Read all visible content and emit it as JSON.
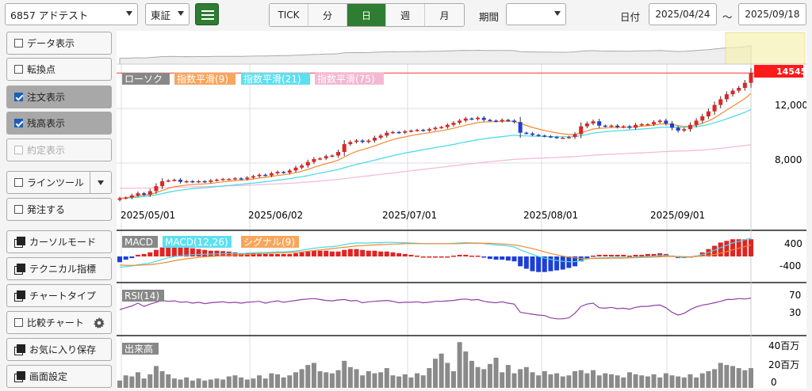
{
  "toolbar": {
    "stock": "6857 アドテスト",
    "market": "東証",
    "tabs": [
      "TICK",
      "分",
      "日",
      "週",
      "月"
    ],
    "active_tab": "日",
    "period_label": "期間",
    "period_value": "",
    "date_label": "日付",
    "date_from": "2025/04/24",
    "tilde": "〜",
    "date_to": "2025/09/18"
  },
  "side": {
    "data_display": "データ表示",
    "turning_point": "転換点",
    "order_display": "注文表示",
    "balance_display": "残高表示",
    "contract_display": "約定表示",
    "line_tool": "ラインツール",
    "place_order": "発注する",
    "cursor_mode": "カーソルモード",
    "technical": "テクニカル指標",
    "chart_type": "チャートタイプ",
    "compare_chart": "比較チャート",
    "save_favorite": "お気に入り保存",
    "screen_settings": "画面設定"
  },
  "chart": {
    "price_legend": [
      "ローソク",
      "指数平滑(9)",
      "指数平滑(21)",
      "指数平滑(75)"
    ],
    "last_price": "14545",
    "price_ticks": [
      "12,000",
      "8,000"
    ],
    "date_ticks": [
      "2025/05/01",
      "2025/06/02",
      "2025/07/01",
      "2025/08/01",
      "2025/09/01"
    ],
    "macd_legend": [
      "MACD",
      "MACD(12,26)",
      "シグナル(9)"
    ],
    "macd_ticks": [
      "400",
      "-400"
    ],
    "rsi_legend": "RSI(14)",
    "rsi_ticks": [
      "70",
      "30"
    ],
    "volume_legend": "出来高",
    "volume_ticks": [
      "40百万",
      "20百万",
      "0"
    ]
  },
  "chart_data": {
    "type": "candlestick",
    "x_range": [
      "2025/04/24",
      "2025/09/18"
    ],
    "close": [
      5750,
      5800,
      5950,
      6100,
      6000,
      6250,
      6600,
      6950,
      7000,
      7050,
      6900,
      6950,
      6900,
      6950,
      6900,
      7000,
      7050,
      7100,
      7100,
      7150,
      7100,
      7200,
      7300,
      7400,
      7350,
      7500,
      7600,
      7550,
      7700,
      7900,
      8050,
      8300,
      8500,
      8550,
      8700,
      8750,
      9000,
      9550,
      9700,
      9800,
      9700,
      9800,
      10000,
      10150,
      10350,
      10400,
      10350,
      10450,
      10500,
      10550,
      10500,
      10600,
      10700,
      10750,
      10900,
      11050,
      11200,
      11350,
      11300,
      11400,
      11250,
      11200,
      11150,
      11250,
      11200,
      11100,
      10350,
      10300,
      10200,
      10150,
      10100,
      10050,
      10000,
      10000,
      10050,
      10250,
      10800,
      11000,
      11150,
      10850,
      10800,
      10850,
      10750,
      10800,
      10700,
      10900,
      10950,
      10950,
      11100,
      11200,
      11000,
      10700,
      10500,
      10600,
      10900,
      11200,
      11500,
      11850,
      12300,
      12700,
      13050,
      13300,
      13500,
      13850,
      14545
    ],
    "volume_millions": [
      7,
      12,
      11,
      15,
      9,
      13,
      21,
      16,
      13,
      9,
      8,
      10,
      7,
      9,
      7,
      8,
      9,
      8,
      11,
      12,
      10,
      8,
      9,
      12,
      9,
      14,
      13,
      10,
      12,
      15,
      18,
      22,
      24,
      16,
      15,
      14,
      17,
      26,
      20,
      18,
      12,
      16,
      14,
      15,
      19,
      12,
      11,
      13,
      10,
      14,
      12,
      19,
      28,
      33,
      24,
      16,
      44,
      35,
      26,
      20,
      18,
      23,
      29,
      15,
      22,
      14,
      18,
      20,
      15,
      12,
      16,
      13,
      14,
      11,
      12,
      16,
      17,
      14,
      17,
      12,
      14,
      13,
      12,
      10,
      15,
      13,
      12,
      11,
      13,
      10,
      14,
      12,
      11,
      10,
      13,
      10,
      14,
      16,
      18,
      24,
      22,
      21,
      19,
      17,
      19
    ],
    "ema9": [
      5750,
      5790,
      5850,
      5920,
      5960,
      6020,
      6140,
      6300,
      6440,
      6560,
      6620,
      6680,
      6710,
      6740,
      6760,
      6800,
      6850,
      6900,
      6940,
      6980,
      7010,
      7050,
      7100,
      7170,
      7220,
      7280,
      7350,
      7400,
      7460,
      7550,
      7650,
      7780,
      7920,
      8050,
      8180,
      8290,
      8430,
      8650,
      8860,
      9040,
      9160,
      9290,
      9430,
      9580,
      9730,
      9870,
      9970,
      10060,
      10150,
      10230,
      10290,
      10350,
      10420,
      10490,
      10570,
      10660,
      10770,
      10880,
      10970,
      11060,
      11100,
      11120,
      11130,
      11150,
      11160,
      11150,
      11000,
      10860,
      10720,
      10610,
      10510,
      10420,
      10340,
      10270,
      10230,
      10230,
      10350,
      10480,
      10610,
      10660,
      10680,
      10710,
      10720,
      10730,
      10730,
      10770,
      10810,
      10840,
      10890,
      10960,
      10970,
      10920,
      10840,
      10790,
      10820,
      10890,
      11010,
      11180,
      11400,
      11660,
      11940,
      12210,
      12470,
      12750,
      13100
    ],
    "ema21": [
      5750,
      5760,
      5790,
      5830,
      5870,
      5920,
      5990,
      6080,
      6170,
      6250,
      6320,
      6370,
      6420,
      6460,
      6490,
      6530,
      6570,
      6610,
      6650,
      6690,
      6730,
      6770,
      6810,
      6860,
      6910,
      6960,
      7020,
      7070,
      7130,
      7200,
      7260,
      7340,
      7430,
      7520,
      7600,
      7680,
      7770,
      7890,
      8010,
      8120,
      8220,
      8320,
      8430,
      8530,
      8640,
      8740,
      8830,
      8920,
      9000,
      9080,
      9160,
      9230,
      9310,
      9380,
      9450,
      9530,
      9620,
      9700,
      9780,
      9860,
      9920,
      9980,
      10030,
      10080,
      10130,
      10170,
      10140,
      10130,
      10110,
      10100,
      10090,
      10080,
      10070,
      10070,
      10070,
      10080,
      10150,
      10230,
      10320,
      10380,
      10420,
      10460,
      10490,
      10520,
      10550,
      10580,
      10610,
      10640,
      10680,
      10720,
      10740,
      10740,
      10730,
      10720,
      10740,
      10780,
      10840,
      10930,
      11050,
      11180,
      11320,
      11470,
      11620,
      11780,
      11980
    ],
    "ema75": [
      6450,
      6450,
      6450,
      6460,
      6460,
      6470,
      6480,
      6490,
      6510,
      6520,
      6530,
      6540,
      6550,
      6560,
      6570,
      6580,
      6590,
      6600,
      6620,
      6630,
      6640,
      6660,
      6680,
      6700,
      6720,
      6740,
      6760,
      6780,
      6800,
      6830,
      6860,
      6890,
      6920,
      6960,
      7000,
      7040,
      7080,
      7130,
      7180,
      7230,
      7280,
      7330,
      7380,
      7430,
      7480,
      7530,
      7580,
      7630,
      7680,
      7730,
      7780,
      7830,
      7880,
      7930,
      7980,
      8030,
      8080,
      8130,
      8180,
      8230,
      8280,
      8320,
      8360,
      8400,
      8440,
      8480,
      8500,
      8520,
      8540,
      8560,
      8580,
      8600,
      8620,
      8640,
      8660,
      8680,
      8710,
      8740,
      8770,
      8800,
      8820,
      8840,
      8860,
      8880,
      8900,
      8920,
      8940,
      8960,
      8980,
      9010,
      9030,
      9050,
      9060,
      9070,
      9090,
      9110,
      9140,
      9170,
      9210,
      9250,
      9300,
      9350,
      9400,
      9450,
      9500
    ],
    "macd": [
      -330,
      -310,
      -290,
      -250,
      -230,
      -200,
      -150,
      -90,
      -40,
      0,
      20,
      40,
      50,
      60,
      70,
      70,
      80,
      85,
      90,
      90,
      90,
      100,
      110,
      120,
      120,
      130,
      140,
      140,
      150,
      170,
      190,
      220,
      250,
      270,
      290,
      300,
      320,
      360,
      390,
      410,
      410,
      410,
      420,
      420,
      430,
      430,
      420,
      420,
      410,
      400,
      390,
      390,
      390,
      390,
      390,
      400,
      410,
      420,
      410,
      410,
      390,
      370,
      350,
      340,
      320,
      290,
      200,
      130,
      60,
      0,
      -50,
      -90,
      -120,
      -150,
      -160,
      -160,
      -120,
      -80,
      -50,
      -40,
      -40,
      -30,
      -30,
      -30,
      -30,
      -20,
      -10,
      0,
      10,
      30,
      30,
      10,
      -20,
      -30,
      -20,
      10,
      60,
      120,
      190,
      270,
      340,
      410,
      460,
      510,
      560
    ],
    "macd_signal": [
      -260,
      -270,
      -270,
      -270,
      -260,
      -250,
      -230,
      -200,
      -170,
      -130,
      -100,
      -70,
      -50,
      -30,
      -10,
      0,
      10,
      20,
      30,
      40,
      50,
      60,
      70,
      80,
      90,
      100,
      110,
      110,
      120,
      130,
      140,
      160,
      180,
      200,
      220,
      240,
      260,
      280,
      300,
      320,
      330,
      340,
      350,
      360,
      370,
      380,
      380,
      390,
      390,
      390,
      390,
      390,
      390,
      390,
      390,
      390,
      390,
      400,
      400,
      400,
      400,
      400,
      390,
      380,
      370,
      350,
      320,
      280,
      240,
      190,
      140,
      90,
      50,
      10,
      -20,
      -40,
      -60,
      -60,
      -60,
      -60,
      -60,
      -50,
      -50,
      -50,
      -40,
      -40,
      -30,
      -30,
      -20,
      -10,
      0,
      0,
      0,
      -10,
      -10,
      0,
      10,
      30,
      60,
      100,
      150,
      200,
      250,
      300,
      350
    ],
    "rsi": [
      48,
      52,
      56,
      62,
      55,
      60,
      64,
      68,
      66,
      67,
      64,
      65,
      62,
      64,
      61,
      63,
      64,
      65,
      63,
      64,
      62,
      64,
      65,
      66,
      62,
      65,
      67,
      64,
      66,
      68,
      70,
      71,
      72,
      70,
      68,
      67,
      69,
      70,
      67,
      68,
      63,
      65,
      66,
      67,
      68,
      66,
      63,
      64,
      64,
      65,
      63,
      64,
      66,
      66,
      67,
      68,
      70,
      71,
      69,
      70,
      66,
      64,
      63,
      65,
      62,
      60,
      42,
      40,
      38,
      36,
      35,
      30,
      28,
      28,
      30,
      40,
      55,
      60,
      62,
      52,
      51,
      53,
      50,
      51,
      49,
      53,
      55,
      55,
      57,
      58,
      52,
      42,
      36,
      40,
      48,
      54,
      58,
      60,
      63,
      66,
      70,
      70,
      72,
      71,
      73
    ],
    "price_range": [
      5000,
      15000
    ]
  }
}
